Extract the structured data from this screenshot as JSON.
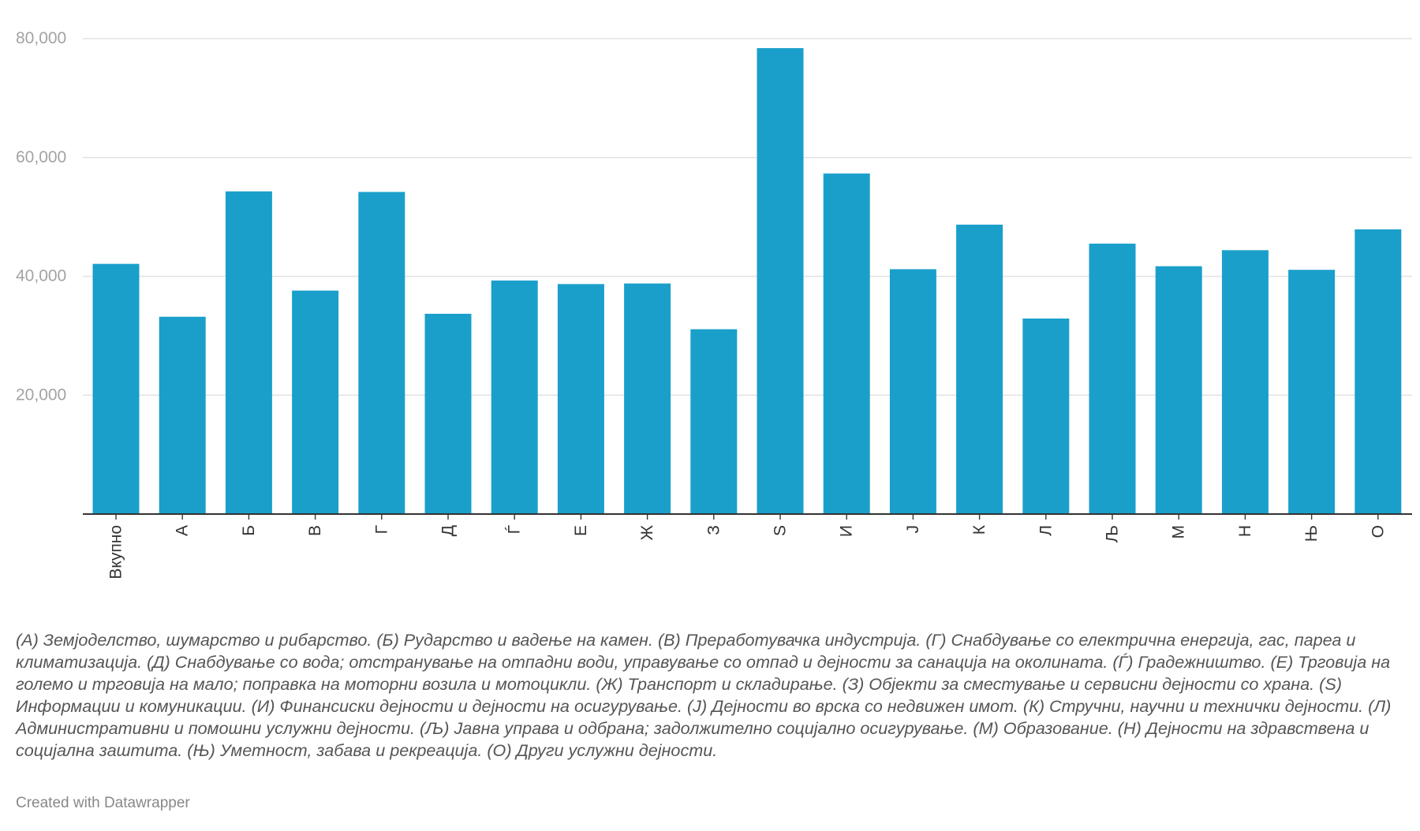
{
  "chart_data": {
    "type": "bar",
    "title": "",
    "xlabel": "",
    "ylabel": "",
    "ylim": [
      0,
      80000
    ],
    "yticks": [
      20000,
      40000,
      60000,
      80000
    ],
    "ytick_labels": [
      "20,000",
      "40,000",
      "60,000",
      "80,000"
    ],
    "categories": [
      "Вкупно",
      "А",
      "Б",
      "В",
      "Г",
      "Д",
      "Ѓ",
      "Е",
      "Ж",
      "З",
      "S",
      "И",
      "Ј",
      "К",
      "Л",
      "Љ",
      "М",
      "Н",
      "Њ",
      "О"
    ],
    "values": [
      42100,
      33200,
      54300,
      37600,
      54200,
      33700,
      39300,
      38700,
      38800,
      31100,
      78400,
      57300,
      41200,
      48700,
      32900,
      45500,
      41700,
      44400,
      41100,
      47900
    ],
    "grid": true,
    "bar_color": "#1a9fcb"
  },
  "notes": "(А) Земјоделство, шумарство и рибарство. (Б) Рударство и вадење на камен. (В) Преработувачка индустрија. (Г) Снабдување со електрична енергија, гас, пареа и климатизација. (Д) Снабдување со вода; отстранување на отпадни води, управување со отпад и дејности за санација на околината. (Ѓ) Градежништво. (Е) Трговија на големо и трговија на мало; поправка на моторни возила и мотоцикли. (Ж) Транспорт и складирање. (З) Објекти за сместување и сервисни дејности со храна. (S) Информации и комуникации. (И) Финансиски дејности и дејности на осигурување. (Ј) Дејности во врска со недвижен имот. (К) Стручни, научни и технички дејности. (Л) Административни и помошни услужни дејности. (Љ) Јавна управа и одбрана; задолжително социјално осигурување. (М) Образование. (Н) Дејности на здравствена и социјална заштита. (Њ) Уметност, забава и рекреација. (О) Други услужни дејности.",
  "credit": "Created with Datawrapper"
}
